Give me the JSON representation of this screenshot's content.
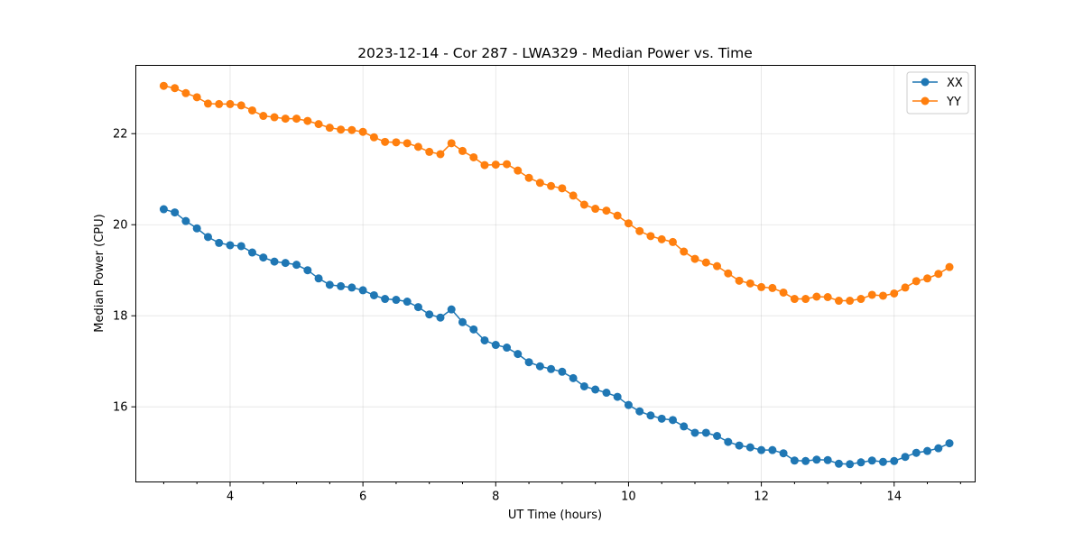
{
  "chart_data": {
    "type": "line",
    "title": "2023-12-14 - Cor 287 - LWA329 - Median Power vs. Time",
    "xlabel": "UT Time (hours)",
    "ylabel": "Median Power (CPU)",
    "xlim": [
      2.58,
      15.22
    ],
    "ylim": [
      14.35,
      23.5
    ],
    "x_ticks": [
      4,
      6,
      8,
      10,
      12,
      14
    ],
    "x_tick_labels": [
      "4",
      "6",
      "8",
      "10",
      "12",
      "14"
    ],
    "x_minor_step": 0.5,
    "y_ticks": [
      16,
      18,
      20,
      22
    ],
    "y_tick_labels": [
      "16",
      "18",
      "20",
      "22"
    ],
    "grid": true,
    "legend_position": "top-right",
    "x": [
      3.0,
      3.167,
      3.333,
      3.5,
      3.667,
      3.833,
      4.0,
      4.167,
      4.333,
      4.5,
      4.667,
      4.833,
      5.0,
      5.167,
      5.333,
      5.5,
      5.667,
      5.833,
      6.0,
      6.167,
      6.333,
      6.5,
      6.667,
      6.833,
      7.0,
      7.167,
      7.333,
      7.5,
      7.667,
      7.833,
      8.0,
      8.167,
      8.333,
      8.5,
      8.667,
      8.833,
      9.0,
      9.167,
      9.333,
      9.5,
      9.667,
      9.833,
      10.0,
      10.167,
      10.333,
      10.5,
      10.667,
      10.833,
      11.0,
      11.167,
      11.333,
      11.5,
      11.667,
      11.833,
      12.0,
      12.167,
      12.333,
      12.5,
      12.667,
      12.833,
      13.0,
      13.167,
      13.333,
      13.5,
      13.667,
      13.833,
      14.0,
      14.167,
      14.333,
      14.5,
      14.667,
      14.833
    ],
    "series": [
      {
        "name": "XX",
        "color": "#1f77b4",
        "values": [
          20.34,
          20.27,
          20.08,
          19.92,
          19.73,
          19.6,
          19.55,
          19.53,
          19.39,
          19.28,
          19.19,
          19.16,
          19.12,
          19.0,
          18.82,
          18.68,
          18.65,
          18.62,
          18.56,
          18.45,
          18.37,
          18.35,
          18.31,
          18.19,
          18.03,
          17.96,
          18.14,
          17.86,
          17.7,
          17.46,
          17.36,
          17.3,
          17.16,
          16.98,
          16.89,
          16.83,
          16.77,
          16.63,
          16.45,
          16.38,
          16.31,
          16.22,
          16.04,
          15.9,
          15.81,
          15.74,
          15.71,
          15.57,
          15.43,
          15.43,
          15.36,
          15.23,
          15.15,
          15.11,
          15.05,
          15.05,
          14.98,
          14.82,
          14.81,
          14.84,
          14.83,
          14.75,
          14.74,
          14.78,
          14.82,
          14.79,
          14.81,
          14.9,
          14.99,
          15.03,
          15.09,
          15.2
        ]
      },
      {
        "name": "YY",
        "color": "#ff7f0e",
        "values": [
          23.05,
          23.0,
          22.89,
          22.8,
          22.66,
          22.65,
          22.65,
          22.62,
          22.51,
          22.39,
          22.36,
          22.33,
          22.33,
          22.28,
          22.21,
          22.13,
          22.09,
          22.08,
          22.04,
          21.92,
          21.82,
          21.81,
          21.79,
          21.71,
          21.6,
          21.55,
          21.79,
          21.62,
          21.48,
          21.31,
          21.32,
          21.33,
          21.19,
          21.03,
          20.92,
          20.85,
          20.8,
          20.64,
          20.44,
          20.35,
          20.31,
          20.2,
          20.03,
          19.86,
          19.75,
          19.68,
          19.62,
          19.41,
          19.25,
          19.17,
          19.09,
          18.93,
          18.77,
          18.71,
          18.63,
          18.61,
          18.51,
          18.37,
          18.37,
          18.42,
          18.41,
          18.33,
          18.33,
          18.37,
          18.46,
          18.44,
          18.49,
          18.62,
          18.76,
          18.82,
          18.92,
          19.07
        ]
      }
    ]
  }
}
